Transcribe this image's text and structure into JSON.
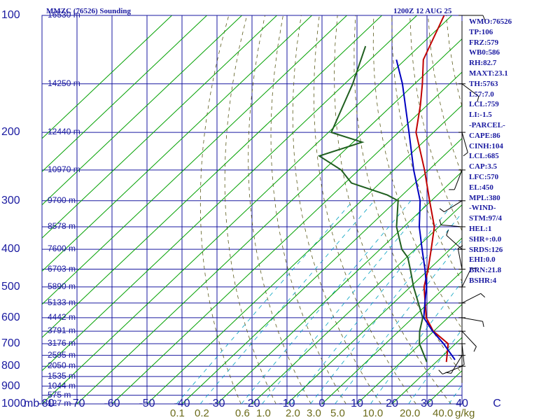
{
  "header": {
    "title_left": "MMZC (76526) Sounding",
    "title_right": "1200Z 12 AUG 25"
  },
  "stats": [
    "WMO:76526",
    "TP:106",
    "FRZ:579",
    "WB0:586",
    "RH:82.7",
    "MAXT:23.1",
    "TH:5763",
    "L57:7.0",
    "LCL:759",
    "LI:-1.5",
    "-PARCEL-",
    "CAPE:86",
    "CINH:104",
    "LCL:685",
    "CAP:3.5",
    "LFC:570",
    "EL:450",
    "MPL:380",
    "-WIND-",
    "STM:97/4",
    "HEL:1",
    "SHR+:0.0",
    "SRDS:126",
    "EHI:0.0",
    "BRN:21.8",
    "BSHR:4"
  ],
  "colors": {
    "axes": "#1a1aa0",
    "temperature": "#c00000",
    "dewpoint": "#1f5f1f",
    "parcel": "#0000c0",
    "isotherm": "#00a000",
    "dry_adiabat": "#5a5a1a",
    "mixing_ratio": "#00a0c0",
    "mixing_label": "#6b6b1a"
  },
  "chart_data": {
    "type": "skew-t",
    "title": "MMZC (76526) Sounding",
    "pressure_levels": [
      100,
      200,
      300,
      400,
      500,
      600,
      700,
      800,
      900,
      1000
    ],
    "pressure_unit": "mb",
    "temperature_ticks": [
      "-80",
      "-70",
      "-60",
      "-50",
      "-40",
      "-30",
      "-20",
      "-10",
      "0",
      "10",
      "20",
      "30",
      "40",
      "C"
    ],
    "temperature_tick_values": [
      -80,
      -70,
      -60,
      -50,
      -40,
      -30,
      -20,
      -10,
      0,
      10,
      20,
      30,
      40
    ],
    "temperature_range": [
      -80,
      40
    ],
    "pressure_range": [
      100,
      1000
    ],
    "height_labels": [
      {
        "text": "16530 m",
        "p": 100
      },
      {
        "text": "14250 m",
        "p": 150
      },
      {
        "text": "12440 m",
        "p": 200
      },
      {
        "text": "10970 m",
        "p": 250
      },
      {
        "text": "9700 m",
        "p": 300
      },
      {
        "text": "8578 m",
        "p": 350
      },
      {
        "text": "7600 m",
        "p": 400
      },
      {
        "text": "6703 m",
        "p": 450
      },
      {
        "text": "5890 m",
        "p": 500
      },
      {
        "text": "5133 m",
        "p": 550
      },
      {
        "text": "4442 m",
        "p": 600
      },
      {
        "text": "3791 m",
        "p": 650
      },
      {
        "text": "3176 m",
        "p": 700
      },
      {
        "text": "2595 m",
        "p": 750
      },
      {
        "text": "2050 m",
        "p": 800
      },
      {
        "text": "1535 m",
        "p": 850
      },
      {
        "text": "1044 m",
        "p": 900
      },
      {
        "text": "575 m",
        "p": 950
      },
      {
        "text": "127 m",
        "p": 1000
      }
    ],
    "mixing_ratio_labels": [
      "0.1",
      "0.2",
      "0.6",
      "1.0",
      "2.0",
      "3.0",
      "5.0",
      "10.0",
      "20.0",
      "40.0"
    ],
    "mixing_ratio_values": [
      0.1,
      0.2,
      0.6,
      1.0,
      2.0,
      3.0,
      5.0,
      10.0,
      20.0,
      40.0
    ],
    "mixing_unit": "g/kg",
    "series": [
      {
        "name": "temperature",
        "points": [
          {
            "p": 780,
            "t": 22.9
          },
          {
            "p": 700,
            "t": 17.9
          },
          {
            "p": 650,
            "t": 9.9
          },
          {
            "p": 600,
            "t": 3.8
          },
          {
            "p": 500,
            "t": -6.1
          },
          {
            "p": 450,
            "t": -10.3
          },
          {
            "p": 400,
            "t": -15.4
          },
          {
            "p": 350,
            "t": -21.3
          },
          {
            "p": 300,
            "t": -30.5
          },
          {
            "p": 250,
            "t": -41.2
          },
          {
            "p": 200,
            "t": -55.0
          },
          {
            "p": 170,
            "t": -62.0
          },
          {
            "p": 150,
            "t": -67.8
          },
          {
            "p": 130,
            "t": -74.8
          },
          {
            "p": 100,
            "t": -82.2
          }
        ]
      },
      {
        "name": "dewpoint",
        "points": [
          {
            "p": 780,
            "t": 17.3
          },
          {
            "p": 700,
            "t": 9.7
          },
          {
            "p": 650,
            "t": 6.0
          },
          {
            "p": 600,
            "t": 2.8
          },
          {
            "p": 500,
            "t": -9.1
          },
          {
            "p": 450,
            "t": -15.4
          },
          {
            "p": 420,
            "t": -19.6
          },
          {
            "p": 400,
            "t": -23.8
          },
          {
            "p": 350,
            "t": -32.1
          },
          {
            "p": 300,
            "t": -39.5
          },
          {
            "p": 290,
            "t": -44.3
          },
          {
            "p": 270,
            "t": -58.2
          },
          {
            "p": 250,
            "t": -65.0
          },
          {
            "p": 230,
            "t": -75.5
          },
          {
            "p": 212,
            "t": -67.4
          },
          {
            "p": 200,
            "t": -79.2
          },
          {
            "p": 150,
            "t": -87.7
          },
          {
            "p": 120,
            "t": -95.4
          }
        ]
      },
      {
        "name": "parcel",
        "points": [
          {
            "p": 770,
            "t": 24.7
          },
          {
            "p": 700,
            "t": 16.6
          },
          {
            "p": 650,
            "t": 9.7
          },
          {
            "p": 600,
            "t": 3.1
          },
          {
            "p": 550,
            "t": -1.0
          },
          {
            "p": 500,
            "t": -5.4
          },
          {
            "p": 450,
            "t": -11.2
          },
          {
            "p": 400,
            "t": -18.0
          },
          {
            "p": 350,
            "t": -25.6
          },
          {
            "p": 300,
            "t": -33.2
          },
          {
            "p": 250,
            "t": -44.3
          },
          {
            "p": 200,
            "t": -57.0
          },
          {
            "p": 150,
            "t": -73.5
          },
          {
            "p": 130,
            "t": -82.5
          }
        ]
      }
    ],
    "wind_barbs_pressure": [
      100,
      150,
      200,
      250,
      300,
      350,
      400,
      450,
      500,
      550,
      600,
      650,
      700,
      750,
      800
    ]
  },
  "axes_labels": {
    "mb": "mb"
  }
}
